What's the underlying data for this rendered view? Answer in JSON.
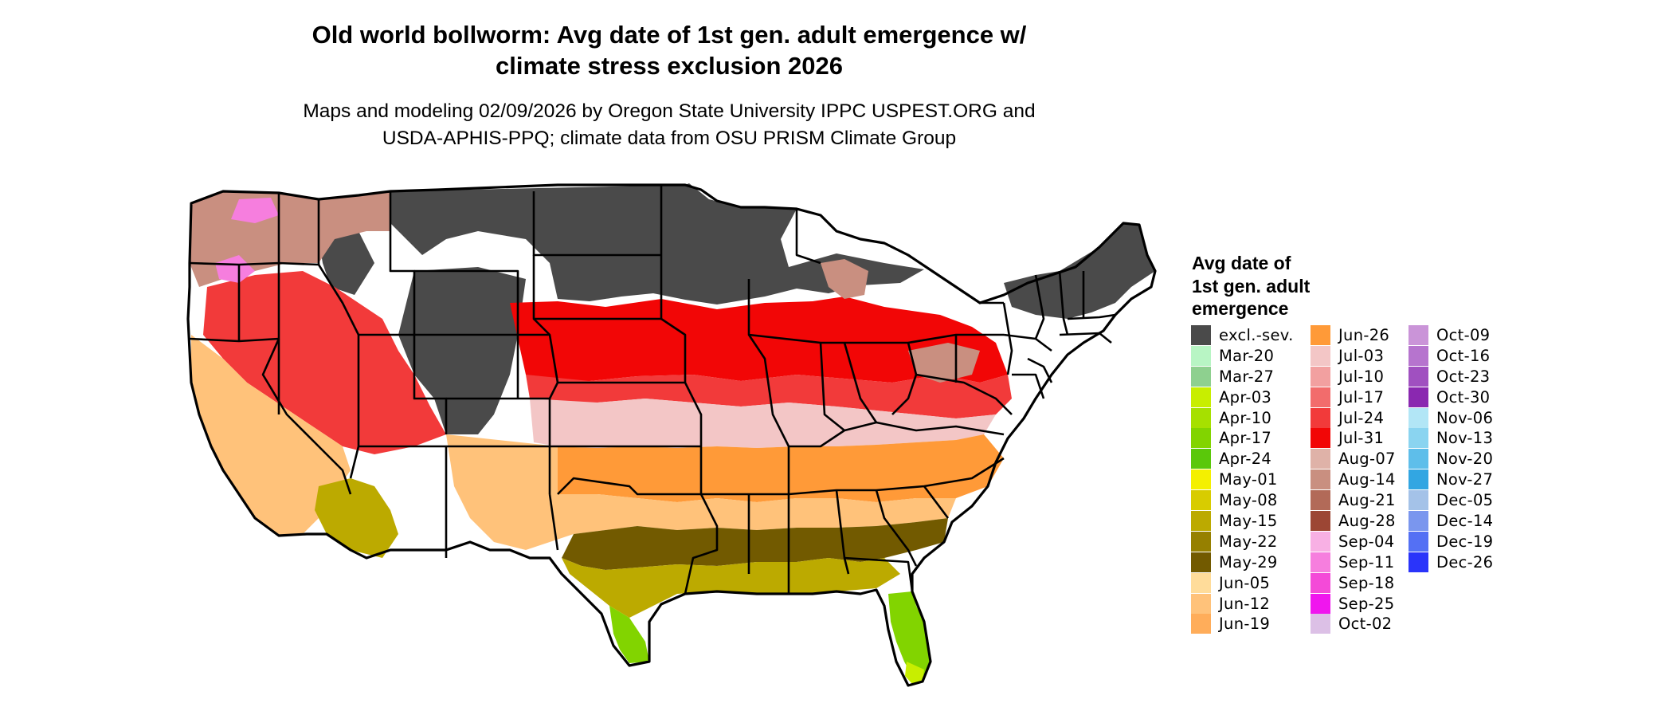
{
  "title": {
    "line1": "Old world bollworm: Avg date of 1st gen. adult emergence w/",
    "line2": "climate stress exclusion 2026"
  },
  "subtitle": {
    "line1": "Maps and modeling 02/09/2026 by Oregon State University IPPC USPEST.ORG and",
    "line2": "USDA-APHIS-PPQ; climate data from OSU PRISM Climate Group"
  },
  "map": {
    "region": "Contiguous United States",
    "state_borders": true
  },
  "legend": {
    "title_lines": [
      "Avg date of",
      "1st gen. adult",
      "emergence"
    ],
    "columns": [
      [
        {
          "label": "excl.-sev.",
          "color": "#4a4a4a"
        },
        {
          "label": "Mar-20",
          "color": "#b8f5c4"
        },
        {
          "label": "Mar-27",
          "color": "#8ed08f"
        },
        {
          "label": "Apr-03",
          "color": "#c8ee00"
        },
        {
          "label": "Apr-10",
          "color": "#a6e000"
        },
        {
          "label": "Apr-17",
          "color": "#82d400"
        },
        {
          "label": "Apr-24",
          "color": "#5ac80a"
        },
        {
          "label": "May-01",
          "color": "#f4f000"
        },
        {
          "label": "May-08",
          "color": "#d8cc00"
        },
        {
          "label": "May-15",
          "color": "#bcaa00"
        },
        {
          "label": "May-22",
          "color": "#968000"
        },
        {
          "label": "May-29",
          "color": "#725a00"
        },
        {
          "label": "Jun-05",
          "color": "#ffdc9a"
        },
        {
          "label": "Jun-12",
          "color": "#ffc27a"
        },
        {
          "label": "Jun-19",
          "color": "#ffad5a"
        }
      ],
      [
        {
          "label": "Jun-26",
          "color": "#ff9a38"
        },
        {
          "label": "Jul-03",
          "color": "#f3c6c6"
        },
        {
          "label": "Jul-10",
          "color": "#f2a0a0"
        },
        {
          "label": "Jul-17",
          "color": "#f26c6c"
        },
        {
          "label": "Jul-24",
          "color": "#f23a3a"
        },
        {
          "label": "Jul-31",
          "color": "#f20606"
        },
        {
          "label": "Aug-07",
          "color": "#dfb2a8"
        },
        {
          "label": "Aug-14",
          "color": "#c98f80"
        },
        {
          "label": "Aug-21",
          "color": "#b26a58"
        },
        {
          "label": "Aug-28",
          "color": "#9c4634"
        },
        {
          "label": "Sep-04",
          "color": "#f8b0e4"
        },
        {
          "label": "Sep-11",
          "color": "#f67ede"
        },
        {
          "label": "Sep-18",
          "color": "#f44ad8"
        },
        {
          "label": "Sep-25",
          "color": "#f016ee"
        },
        {
          "label": "Oct-02",
          "color": "#dcc0e6"
        }
      ],
      [
        {
          "label": "Oct-09",
          "color": "#ca94d8"
        },
        {
          "label": "Oct-16",
          "color": "#b674ce"
        },
        {
          "label": "Oct-23",
          "color": "#a050c0"
        },
        {
          "label": "Oct-30",
          "color": "#8a28b0"
        },
        {
          "label": "Nov-06",
          "color": "#b2e6f6"
        },
        {
          "label": "Nov-13",
          "color": "#8ad4f0"
        },
        {
          "label": "Nov-20",
          "color": "#5ebeea"
        },
        {
          "label": "Nov-27",
          "color": "#32a6e2"
        },
        {
          "label": "Dec-05",
          "color": "#a4c2e8"
        },
        {
          "label": "Dec-14",
          "color": "#7a96ee"
        },
        {
          "label": "Dec-19",
          "color": "#5470f4"
        },
        {
          "label": "Dec-26",
          "color": "#2a34fa"
        }
      ]
    ]
  }
}
